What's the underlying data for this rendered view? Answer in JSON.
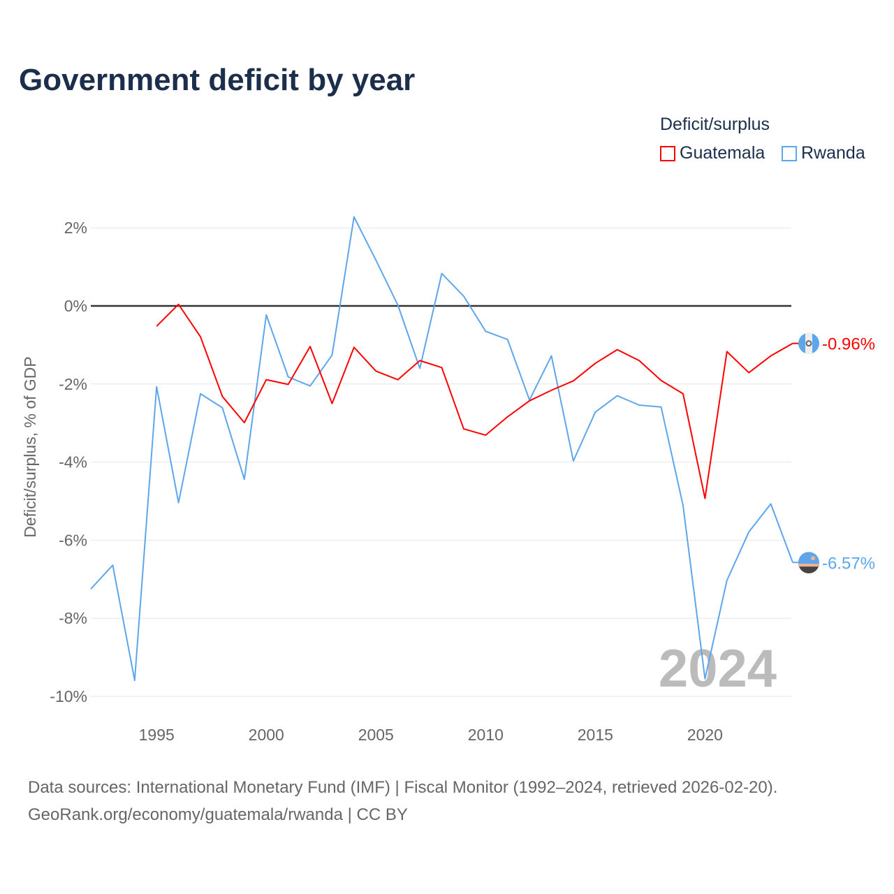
{
  "title": "Government deficit by year",
  "legend": {
    "title": "Deficit/surplus",
    "items": [
      {
        "label": "Guatemala",
        "color": "#ff0000"
      },
      {
        "label": "Rwanda",
        "color": "#5ea6ec"
      }
    ]
  },
  "source": {
    "line1": "Data sources: International Monetary Fund (IMF) | Fiscal Monitor (1992–2024, retrieved 2026-02-20).",
    "line2": "GeoRank.org/economy/guatemala/rwanda | CC BY"
  },
  "chart_data": {
    "type": "line",
    "title": "Government deficit by year",
    "xlabel": "",
    "ylabel": "Deficit/surplus, % of GDP",
    "xlim": [
      1992,
      2024
    ],
    "ylim": [
      -10,
      2.2
    ],
    "x_ticks": [
      1995,
      2000,
      2005,
      2010,
      2015,
      2020
    ],
    "y_ticks": [
      2,
      0,
      -2,
      -4,
      -6,
      -8,
      -10
    ],
    "y_tick_labels": [
      "2%",
      "0%",
      "-2%",
      "-4%",
      "-6%",
      "-8%",
      "-10%"
    ],
    "x_tick_labels": [
      "1995",
      "2000",
      "2005",
      "2010",
      "2015",
      "2020"
    ],
    "year_watermark": "2024",
    "grid": true,
    "legend_position": "top-right",
    "series": [
      {
        "name": "Guatemala",
        "color": "#ff0000",
        "end_label": "-0.96%",
        "x": [
          1995,
          1996,
          1997,
          1998,
          1999,
          2000,
          2001,
          2002,
          2003,
          2004,
          2005,
          2006,
          2007,
          2008,
          2009,
          2010,
          2011,
          2012,
          2013,
          2014,
          2015,
          2016,
          2017,
          2018,
          2019,
          2020,
          2021,
          2022,
          2023,
          2024
        ],
        "values": [
          -0.52,
          0.04,
          -0.79,
          -2.32,
          -2.99,
          -1.89,
          -2.01,
          -1.04,
          -2.5,
          -1.06,
          -1.67,
          -1.89,
          -1.4,
          -1.58,
          -3.15,
          -3.31,
          -2.84,
          -2.43,
          -2.16,
          -1.92,
          -1.47,
          -1.12,
          -1.4,
          -1.91,
          -2.25,
          -4.93,
          -1.17,
          -1.71,
          -1.28,
          -0.96
        ]
      },
      {
        "name": "Rwanda",
        "color": "#5ea6ec",
        "end_label": "-6.57%",
        "x": [
          1992,
          1993,
          1994,
          1995,
          1996,
          1997,
          1998,
          1999,
          2000,
          2001,
          2002,
          2003,
          2004,
          2005,
          2006,
          2007,
          2008,
          2009,
          2010,
          2011,
          2012,
          2013,
          2014,
          2015,
          2016,
          2017,
          2018,
          2019,
          2020,
          2021,
          2022,
          2023,
          2024
        ],
        "values": [
          -7.25,
          -6.64,
          -9.59,
          -2.07,
          -5.04,
          -2.25,
          -2.61,
          -4.44,
          -0.23,
          -1.82,
          -2.05,
          -1.26,
          2.28,
          1.17,
          0.02,
          -1.6,
          0.83,
          0.25,
          -0.65,
          -0.86,
          -2.41,
          -1.28,
          -3.97,
          -2.72,
          -2.3,
          -2.54,
          -2.59,
          -5.11,
          -9.55,
          -7.03,
          -5.79,
          -5.07,
          -6.57
        ]
      }
    ]
  }
}
